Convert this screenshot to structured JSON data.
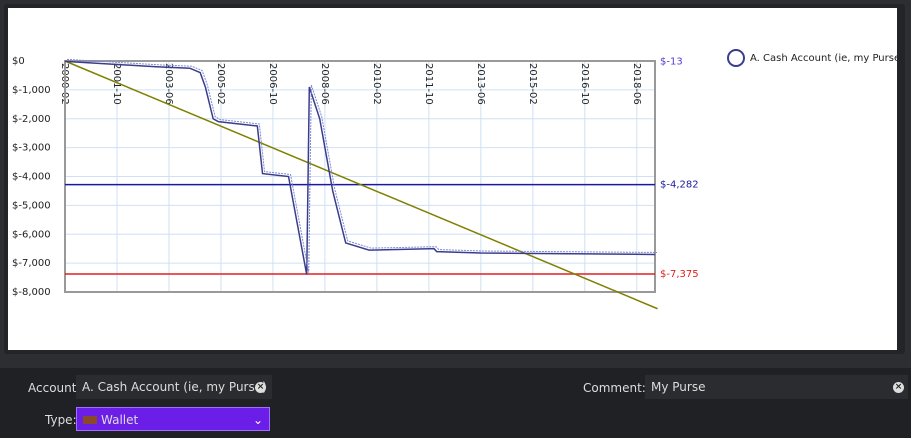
{
  "chart_data": {
    "type": "line",
    "series": [
      {
        "name": "A. Cash Account (ie, my Purse)",
        "color": "#3c3c8c",
        "x": [
          "2000-02",
          "2003-01",
          "2004-02",
          "2004-06",
          "2004-08",
          "2004-11",
          "2005-01",
          "2006-04",
          "2006-06",
          "2007-04",
          "2007-11",
          "2007-12",
          "2008-04",
          "2008-09",
          "2009-02",
          "2009-11",
          "2011-12",
          "2012-01",
          "2013-06",
          "2019-01"
        ],
        "values": [
          -13,
          -200,
          -250,
          -400,
          -900,
          -2000,
          -2100,
          -2250,
          -3900,
          -4000,
          -7400,
          -900,
          -2000,
          -4500,
          -6300,
          -6550,
          -6500,
          -6600,
          -6650,
          -6700
        ]
      }
    ],
    "trendline": {
      "color": "#808000",
      "x": [
        "2000-02",
        "2019-02"
      ],
      "values": [
        0,
        -8580
      ]
    },
    "reference_lines": [
      {
        "value": -13,
        "label": "$-13",
        "color": "#5a3ad6",
        "line": false
      },
      {
        "value": -4282,
        "label": "$-4,282",
        "color": "#1a1aa0",
        "line": true
      },
      {
        "value": -7375,
        "label": "$-7,375",
        "color": "#e02020",
        "line": true
      }
    ],
    "xlim": [
      "2000-02",
      "2019-01"
    ],
    "xticks": [
      "2000-02",
      "2001-10",
      "2003-06",
      "2005-02",
      "2006-10",
      "2008-06",
      "2010-02",
      "2011-10",
      "2013-06",
      "2015-02",
      "2016-10",
      "2018-06"
    ],
    "ylim": [
      -8000,
      0
    ],
    "yticks": [
      {
        "value": 0,
        "label": "$0"
      },
      {
        "value": -1000,
        "label": "$-1,000"
      },
      {
        "value": -2000,
        "label": "$-2,000"
      },
      {
        "value": -3000,
        "label": "$-3,000"
      },
      {
        "value": -4000,
        "label": "$-4,000"
      },
      {
        "value": -5000,
        "label": "$-5,000"
      },
      {
        "value": -6000,
        "label": "$-6,000"
      },
      {
        "value": -7000,
        "label": "$-7,000"
      },
      {
        "value": -8000,
        "label": "$-8,000"
      }
    ],
    "grid": true,
    "legend": "top-right"
  },
  "form": {
    "account": {
      "label": "Account:",
      "value": "A. Cash Account (ie, my Purse)"
    },
    "comment": {
      "label": "Comment:",
      "value": "My Purse"
    },
    "type": {
      "label": "Type:",
      "value": "Wallet"
    }
  }
}
